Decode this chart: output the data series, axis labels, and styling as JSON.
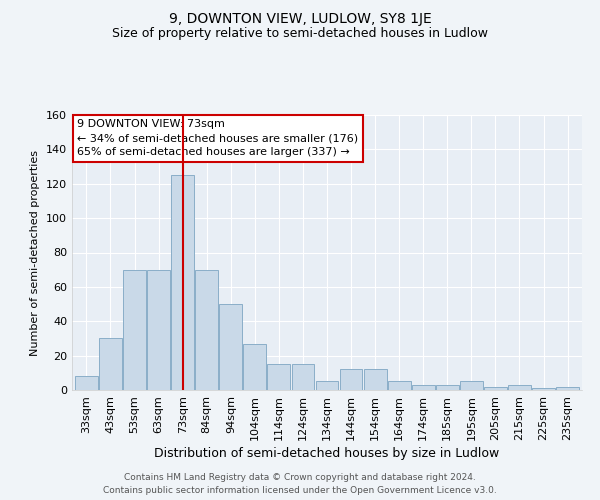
{
  "title": "9, DOWNTON VIEW, LUDLOW, SY8 1JE",
  "subtitle": "Size of property relative to semi-detached houses in Ludlow",
  "xlabel": "Distribution of semi-detached houses by size in Ludlow",
  "ylabel": "Number of semi-detached properties",
  "footer_line1": "Contains HM Land Registry data © Crown copyright and database right 2024.",
  "footer_line2": "Contains public sector information licensed under the Open Government Licence v3.0.",
  "annotation_title": "9 DOWNTON VIEW: 73sqm",
  "annotation_line2": "← 34% of semi-detached houses are smaller (176)",
  "annotation_line3": "65% of semi-detached houses are larger (337) →",
  "bar_color": "#c9d9e8",
  "bar_edge_color": "#8aaec8",
  "highlight_color": "#cc0000",
  "bg_color": "#e8eef5",
  "fig_bg_color": "#f0f4f8",
  "annotation_box_color": "#ffffff",
  "annotation_box_edge": "#cc0000",
  "categories": [
    "33sqm",
    "43sqm",
    "53sqm",
    "63sqm",
    "73sqm",
    "84sqm",
    "94sqm",
    "104sqm",
    "114sqm",
    "124sqm",
    "134sqm",
    "144sqm",
    "154sqm",
    "164sqm",
    "174sqm",
    "185sqm",
    "195sqm",
    "205sqm",
    "215sqm",
    "225sqm",
    "235sqm"
  ],
  "values": [
    8,
    30,
    70,
    70,
    125,
    70,
    50,
    27,
    15,
    15,
    5,
    12,
    12,
    5,
    3,
    3,
    5,
    2,
    3,
    1,
    2
  ],
  "ylim": [
    0,
    160
  ],
  "yticks": [
    0,
    20,
    40,
    60,
    80,
    100,
    120,
    140,
    160
  ],
  "highlight_bar_index": 4,
  "title_fontsize": 10,
  "subtitle_fontsize": 9,
  "xlabel_fontsize": 9,
  "ylabel_fontsize": 8,
  "tick_fontsize": 8,
  "footer_fontsize": 6.5,
  "annotation_fontsize": 8
}
